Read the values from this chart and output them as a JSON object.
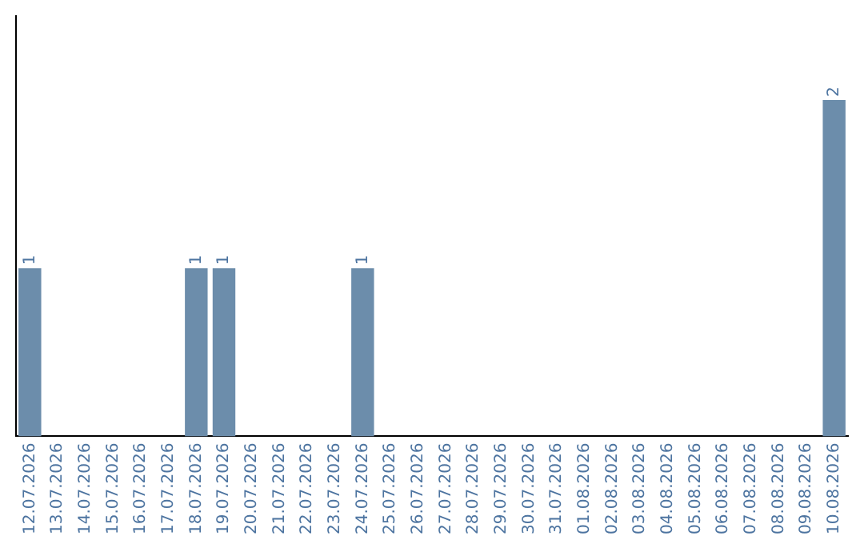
{
  "chart_data": {
    "type": "bar",
    "categories": [
      "12.07.2026",
      "13.07.2026",
      "14.07.2026",
      "15.07.2026",
      "16.07.2026",
      "17.07.2026",
      "18.07.2026",
      "19.07.2026",
      "20.07.2026",
      "21.07.2026",
      "22.07.2026",
      "23.07.2026",
      "24.07.2026",
      "25.07.2026",
      "26.07.2026",
      "27.07.2026",
      "28.07.2026",
      "29.07.2026",
      "30.07.2026",
      "31.07.2026",
      "01.08.2026",
      "02.08.2026",
      "03.08.2026",
      "04.08.2026",
      "05.08.2026",
      "06.08.2026",
      "07.08.2026",
      "08.08.2026",
      "09.08.2026",
      "10.08.2026"
    ],
    "values": [
      1,
      0,
      0,
      0,
      0,
      0,
      1,
      1,
      0,
      0,
      0,
      0,
      1,
      0,
      0,
      0,
      0,
      0,
      0,
      0,
      0,
      0,
      0,
      0,
      0,
      0,
      0,
      0,
      0,
      2
    ],
    "value_labels": [
      "1",
      null,
      null,
      null,
      null,
      null,
      "1",
      "1",
      null,
      null,
      null,
      null,
      "1",
      null,
      null,
      null,
      null,
      null,
      null,
      null,
      null,
      null,
      null,
      null,
      null,
      null,
      null,
      null,
      null,
      "2"
    ],
    "color": "#6c8dab",
    "grid": false,
    "tick_labels": "x"
  }
}
